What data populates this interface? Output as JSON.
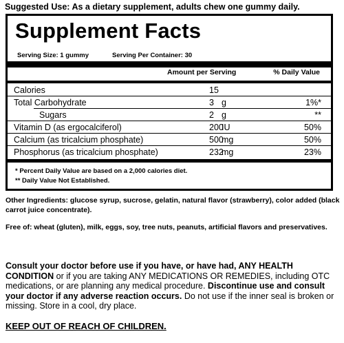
{
  "suggested_use": "Suggested Use: As a dietary supplement, adults chew one gummy daily.",
  "facts": {
    "title": "Supplement Facts",
    "serving_size": "Serving Size: 1 gummy",
    "servings_per_container": "Serving Per Container: 30",
    "header_amount": "Amount per Serving",
    "header_dv": "% Daily Value",
    "rows": [
      {
        "name": "Calories",
        "qty": "15",
        "unit": "",
        "dv": ""
      },
      {
        "name": "Total Carbohydrate",
        "qty": "3",
        "unit": "g",
        "dv": "1%*"
      },
      {
        "name": "Sugars",
        "qty": "2",
        "unit": "g",
        "dv": "**"
      },
      {
        "name": "Vitamin D (as ergocalciferol)",
        "qty": "200",
        "unit": "IU",
        "dv": "50%"
      },
      {
        "name": "Calcium (as tricalcium phosphate)",
        "qty": "500",
        "unit": "mg",
        "dv": "50%"
      },
      {
        "name": "Phosphorus (as tricalcium phosphate)",
        "qty": "232",
        "unit": "mg",
        "dv": "23%"
      }
    ],
    "footnote_1": "* Percent Daily Value are based on a 2,000 calories diet.",
    "footnote_2": "** Daily Value Not Established."
  },
  "other_ingredients": "Other Ingredients: glucose syrup, sucrose, gelatin, natural flavor (strawberry), color added (black carrot juice concentrate).",
  "free_of": "Free of: wheat (gluten), milk, eggs, soy, tree nuts, peanuts, artificial flavors and preservatives.",
  "warning": {
    "part1": "Consult your doctor before use if you have, or have had, ANY HEALTH CONDITION",
    "part2": " or if you are taking ANY MEDICATIONS OR REMEDIES, including OTC medications, or are planning any medical procedure. ",
    "part3": "Discontinue use and consult your doctor if any adverse reaction occurs.",
    "part4": " Do not use if the inner seal is broken or missing. Store in a cool, dry place."
  },
  "keep_out": "KEEP OUT OF REACH OF CHILDREN."
}
